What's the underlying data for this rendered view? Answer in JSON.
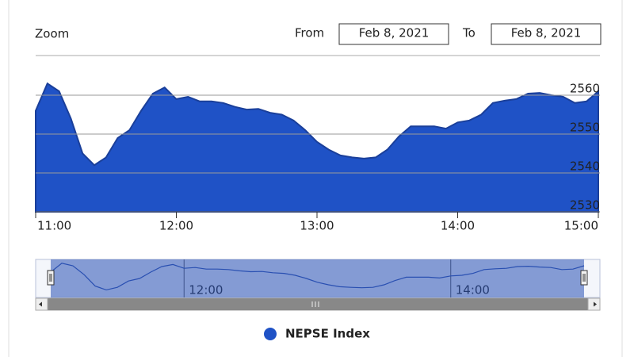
{
  "chart_data": {
    "type": "area",
    "zoom_label": "Zoom",
    "range_from_label": "From",
    "range_from": "Feb 8, 2021",
    "range_to_label": "To",
    "range_to": "Feb 8, 2021",
    "x": [
      "11:00",
      "11:05",
      "11:10",
      "11:15",
      "11:20",
      "11:25",
      "11:30",
      "11:35",
      "11:40",
      "11:45",
      "11:50",
      "11:55",
      "12:00",
      "12:05",
      "12:10",
      "12:15",
      "12:20",
      "12:25",
      "12:30",
      "12:35",
      "12:40",
      "12:45",
      "12:50",
      "12:55",
      "13:00",
      "13:05",
      "13:10",
      "13:15",
      "13:20",
      "13:25",
      "13:30",
      "13:35",
      "13:40",
      "13:45",
      "13:50",
      "13:55",
      "14:00",
      "14:05",
      "14:10",
      "14:15",
      "14:20",
      "14:25",
      "14:30",
      "14:35",
      "14:40",
      "14:45",
      "14:50",
      "14:55",
      "15:00"
    ],
    "series": [
      {
        "name": "NEPSE Index",
        "color": "#1f52c6",
        "values": [
          2556,
          2563,
          2561,
          2554,
          2545,
          2542,
          2544,
          2549,
          2551,
          2556,
          2560.4,
          2562,
          2559,
          2559.6,
          2558.4,
          2558.4,
          2558,
          2557,
          2556.3,
          2556.5,
          2555.5,
          2555,
          2553.5,
          2551,
          2548,
          2546,
          2544.5,
          2544,
          2543.7,
          2544,
          2546,
          2549.4,
          2552,
          2552,
          2552,
          2551.4,
          2553,
          2553.5,
          2555,
          2558,
          2558.6,
          2559,
          2560.4,
          2560.6,
          2560,
          2559.6,
          2558,
          2558.4,
          2561
        ]
      }
    ],
    "xlim": [
      "11:00",
      "15:00"
    ],
    "xticks": [
      "11:00",
      "12:00",
      "13:00",
      "14:00",
      "15:00"
    ],
    "ylim": [
      2530,
      2570
    ],
    "yticks": [
      2530,
      2540,
      2550,
      2560
    ],
    "grid": true,
    "navigator": {
      "ylim": [
        2536,
        2566
      ],
      "xticks": [
        "12:00",
        "14:00"
      ]
    }
  }
}
